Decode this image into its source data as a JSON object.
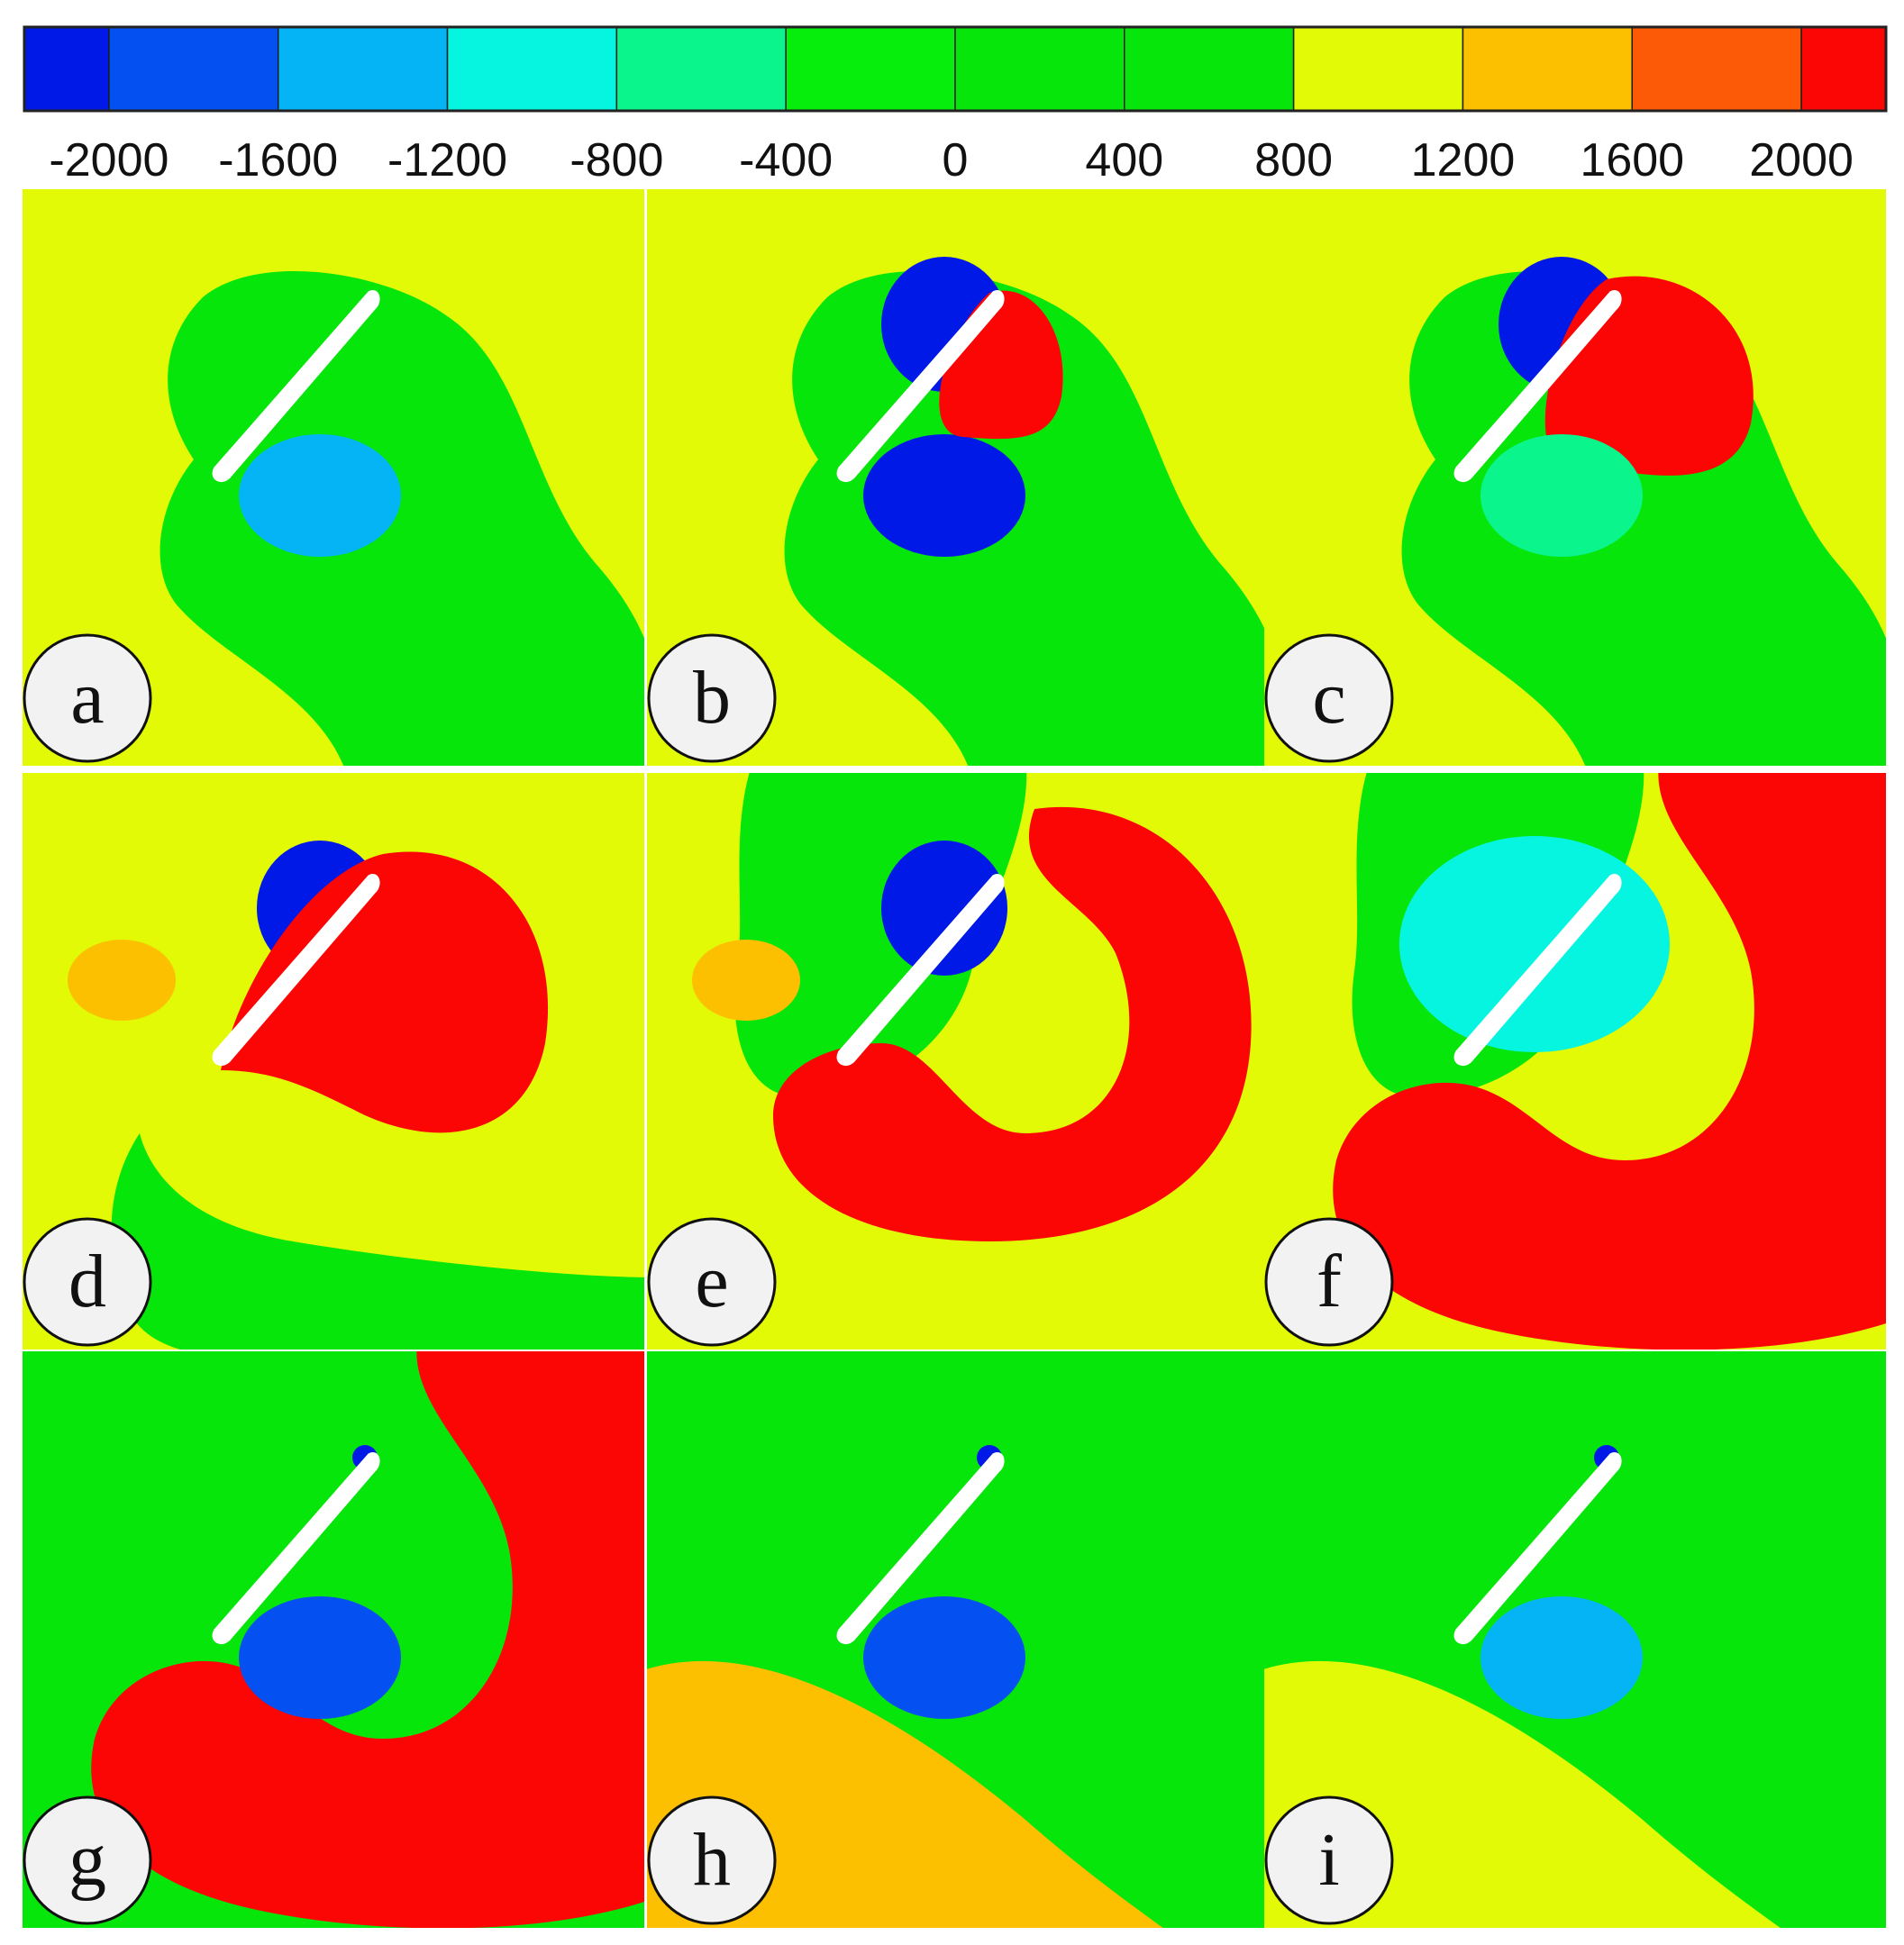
{
  "chart_data": {
    "type": "heatmap",
    "title": "",
    "xlabel": "",
    "ylabel": "",
    "colorbar": {
      "orientation": "horizontal",
      "placement": "top",
      "range": [
        -2200,
        2200
      ],
      "tick_labels": [
        "-2000",
        "-1600",
        "-1200",
        "-800",
        "-400",
        "0",
        "400",
        "800",
        "1200",
        "1600",
        "2000"
      ],
      "ticks": [
        -2000,
        -1600,
        -1200,
        -800,
        -400,
        0,
        400,
        800,
        1200,
        1600,
        2000
      ],
      "levels": [
        {
          "from": -2200,
          "to": -2000,
          "color": "#0019e6"
        },
        {
          "from": -2000,
          "to": -1600,
          "color": "#0550f0"
        },
        {
          "from": -1600,
          "to": -1200,
          "color": "#05b4f5"
        },
        {
          "from": -1200,
          "to": -800,
          "color": "#05f5e1"
        },
        {
          "from": -800,
          "to": -400,
          "color": "#0af58c"
        },
        {
          "from": -400,
          "to": 0,
          "color": "#06ee0c"
        },
        {
          "from": 0,
          "to": 400,
          "color": "#06e60a"
        },
        {
          "from": 400,
          "to": 800,
          "color": "#06e60a"
        },
        {
          "from": 800,
          "to": 1200,
          "color": "#e2fa05"
        },
        {
          "from": 1200,
          "to": 1600,
          "color": "#fcc000"
        },
        {
          "from": 1600,
          "to": 2000,
          "color": "#fc5a06"
        },
        {
          "from": 2000,
          "to": 2200,
          "color": "#fb0505"
        }
      ]
    },
    "grid": false,
    "legend": "none",
    "panels": [
      {
        "label": "a",
        "background": 1000,
        "regions": [
          {
            "value": 200,
            "shape": "plume"
          },
          {
            "value": -1400,
            "shape": "vortex-below"
          }
        ]
      },
      {
        "label": "b",
        "background": 1000,
        "regions": [
          {
            "value": 200,
            "shape": "plume"
          },
          {
            "value": -2100,
            "shape": "vortex-below"
          },
          {
            "value": -2100,
            "shape": "vortex-above"
          },
          {
            "value": 2100,
            "shape": "pressure-lobe-small"
          }
        ]
      },
      {
        "label": "c",
        "background": 1000,
        "regions": [
          {
            "value": 200,
            "shape": "plume"
          },
          {
            "value": -2100,
            "shape": "vortex-above"
          },
          {
            "value": 2100,
            "shape": "pressure-lobe-medium"
          },
          {
            "value": -600,
            "shape": "vortex-below"
          }
        ]
      },
      {
        "label": "d",
        "background": 1000,
        "regions": [
          {
            "value": 200,
            "shape": "plume-lower"
          },
          {
            "value": -2100,
            "shape": "vortex-above"
          },
          {
            "value": 2100,
            "shape": "pressure-lobe-large"
          },
          {
            "value": 1400,
            "shape": "side-blob"
          }
        ]
      },
      {
        "label": "e",
        "background": 1000,
        "regions": [
          {
            "value": 200,
            "shape": "plume-upper"
          },
          {
            "value": -2100,
            "shape": "vortex-above"
          },
          {
            "value": 2100,
            "shape": "pressure-crescent"
          },
          {
            "value": 1400,
            "shape": "side-blob"
          }
        ]
      },
      {
        "label": "f",
        "background": 1000,
        "regions": [
          {
            "value": 200,
            "shape": "plume-upper"
          },
          {
            "value": -1000,
            "shape": "diffuse-vortex"
          },
          {
            "value": 2100,
            "shape": "pressure-crescent-large"
          }
        ]
      },
      {
        "label": "g",
        "background": 200,
        "regions": [
          {
            "value": 2100,
            "shape": "pressure-crescent-large"
          },
          {
            "value": -1800,
            "shape": "vortex-below"
          },
          {
            "value": -2100,
            "shape": "tip-vortex"
          }
        ]
      },
      {
        "label": "h",
        "background": 200,
        "regions": [
          {
            "value": 1400,
            "shape": "lower-band"
          },
          {
            "value": -2000,
            "shape": "vortex-below"
          },
          {
            "value": -2100,
            "shape": "tip-vortex"
          }
        ]
      },
      {
        "label": "i",
        "background": 200,
        "regions": [
          {
            "value": 1000,
            "shape": "lower-band"
          },
          {
            "value": -1600,
            "shape": "vortex-below"
          },
          {
            "value": -2100,
            "shape": "tip-vortex"
          }
        ]
      }
    ]
  }
}
